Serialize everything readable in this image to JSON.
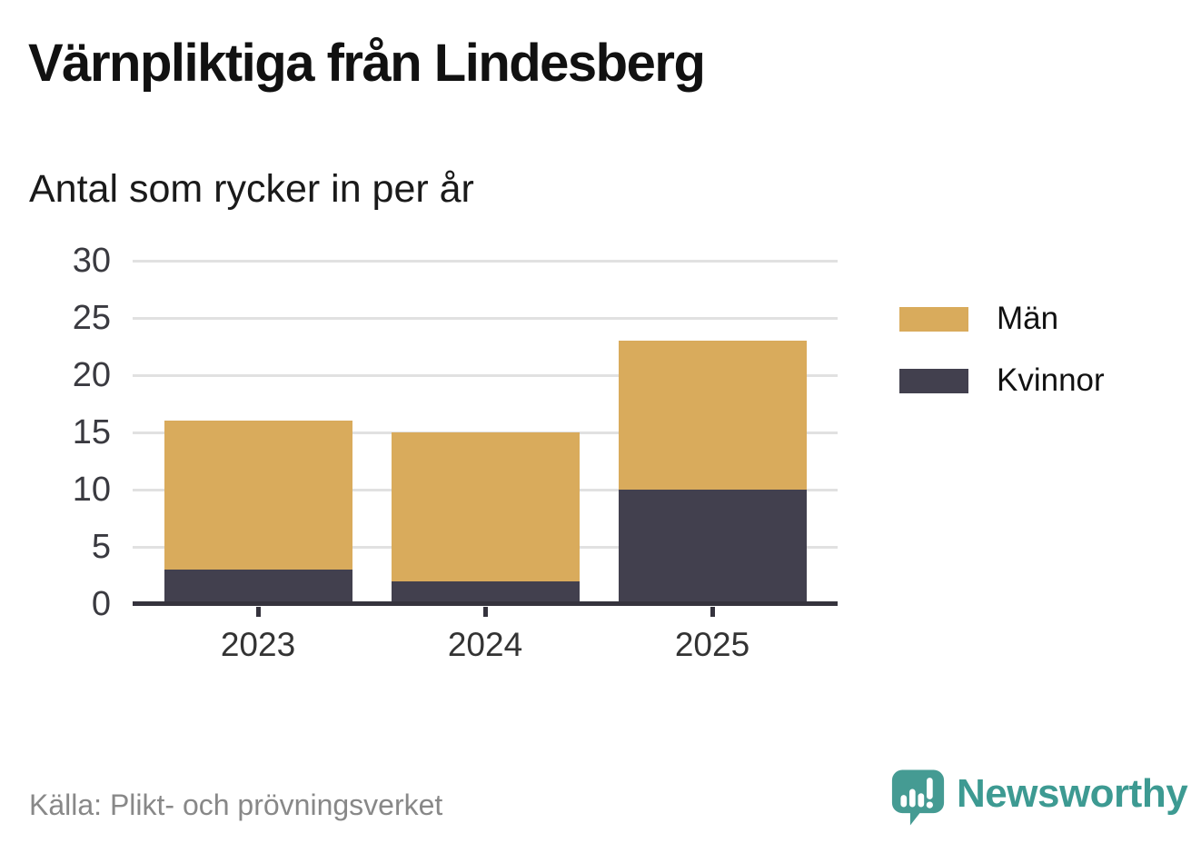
{
  "title": "Värnpliktiga från Lindesberg",
  "subtitle": "Antal som rycker in per år",
  "source": "Källa: Plikt- och prövningsverket",
  "branding": {
    "name": "Newsworthy",
    "color": "#3d9a92",
    "icon": "speech-bubble-bar-chart-icon"
  },
  "colors": {
    "men": "#d9ab5c",
    "women": "#42404e",
    "axis": "#35333d",
    "gridline": "#e1e1e1",
    "tick_label": "#333333",
    "source_text": "#888888"
  },
  "chart_data": {
    "type": "bar",
    "stacked": true,
    "title": "Värnpliktiga från Lindesberg",
    "subtitle": "Antal som rycker in per år",
    "categories": [
      "2023",
      "2024",
      "2025"
    ],
    "series": [
      {
        "name": "Kvinnor",
        "color": "#42404e",
        "values": [
          3,
          2,
          10
        ]
      },
      {
        "name": "Män",
        "color": "#d9ab5c",
        "values": [
          13,
          13,
          13
        ]
      }
    ],
    "totals": [
      16,
      15,
      23
    ],
    "legend": [
      {
        "label": "Män",
        "color": "#d9ab5c"
      },
      {
        "label": "Kvinnor",
        "color": "#42404e"
      }
    ],
    "legend_position": "right",
    "xlabel": "",
    "ylabel": "",
    "ylim": [
      0,
      30
    ],
    "yticks": [
      0,
      5,
      10,
      15,
      20,
      25,
      30
    ],
    "grid": true
  }
}
